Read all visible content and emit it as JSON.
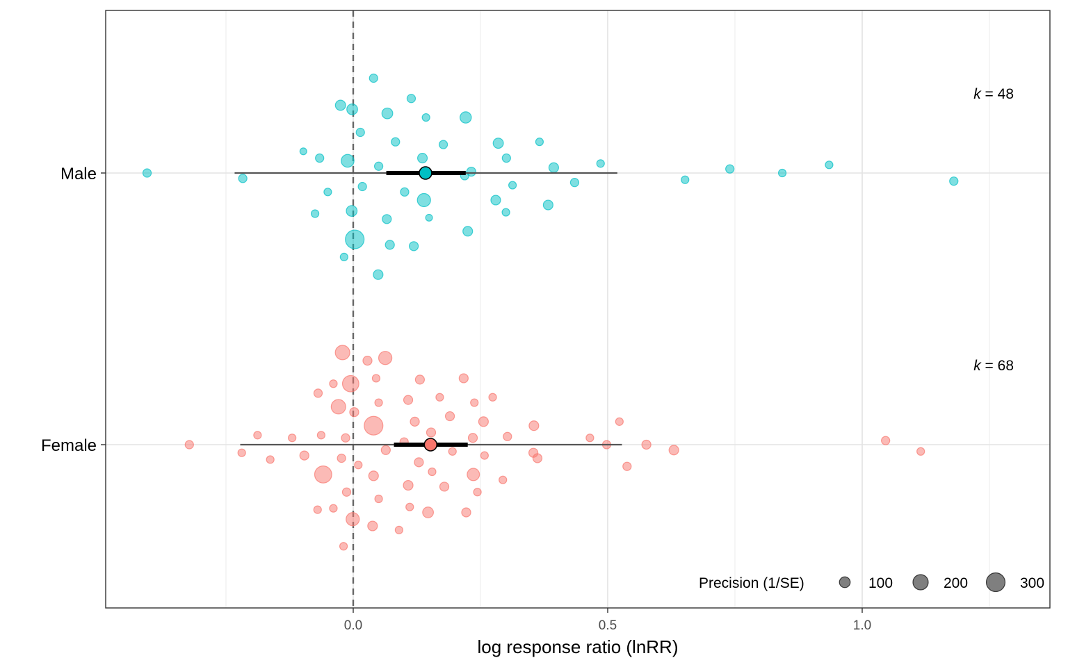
{
  "chart_data": {
    "type": "scatter",
    "subtype": "orchard plot",
    "xlabel": "log response ratio (lnRR)",
    "ylabel": "",
    "xlim": [
      -0.49,
      1.36
    ],
    "x_ticks": [
      "0.0",
      "0.5",
      "1.0"
    ],
    "x_tick_values": [
      0,
      0.5,
      1.0
    ],
    "reference_line": 0,
    "grid": true,
    "groups": [
      {
        "name": "Male",
        "color": "#00BFC4",
        "k_label": "k",
        "k_value": "= 48",
        "estimate": 0.142,
        "ci": [
          0.065,
          0.221
        ],
        "pi": [
          -0.233,
          0.519
        ],
        "points": [
          {
            "x": -0.405,
            "jitter": 0.0,
            "precision": 60
          },
          {
            "x": -0.217,
            "jitter": -0.02,
            "precision": 60
          },
          {
            "x": -0.098,
            "jitter": 0.08,
            "precision": 40
          },
          {
            "x": -0.066,
            "jitter": 0.055,
            "precision": 60
          },
          {
            "x": -0.05,
            "jitter": -0.07,
            "precision": 50
          },
          {
            "x": -0.075,
            "jitter": -0.15,
            "precision": 50
          },
          {
            "x": -0.025,
            "jitter": 0.25,
            "precision": 90
          },
          {
            "x": -0.011,
            "jitter": 0.045,
            "precision": 140
          },
          {
            "x": -0.003,
            "jitter": -0.14,
            "precision": 100
          },
          {
            "x": -0.018,
            "jitter": -0.31,
            "precision": 50
          },
          {
            "x": -0.002,
            "jitter": 0.235,
            "precision": 100
          },
          {
            "x": 0.003,
            "jitter": -0.245,
            "precision": 300
          },
          {
            "x": 0.014,
            "jitter": 0.15,
            "precision": 60
          },
          {
            "x": 0.018,
            "jitter": -0.05,
            "precision": 60
          },
          {
            "x": 0.04,
            "jitter": 0.35,
            "precision": 60
          },
          {
            "x": 0.05,
            "jitter": 0.025,
            "precision": 60
          },
          {
            "x": 0.049,
            "jitter": -0.375,
            "precision": 80
          },
          {
            "x": 0.066,
            "jitter": -0.17,
            "precision": 70
          },
          {
            "x": 0.067,
            "jitter": 0.22,
            "precision": 100
          },
          {
            "x": 0.072,
            "jitter": -0.265,
            "precision": 70
          },
          {
            "x": 0.083,
            "jitter": 0.115,
            "precision": 60
          },
          {
            "x": 0.101,
            "jitter": -0.07,
            "precision": 60
          },
          {
            "x": 0.114,
            "jitter": 0.275,
            "precision": 60
          },
          {
            "x": 0.119,
            "jitter": -0.27,
            "precision": 70
          },
          {
            "x": 0.136,
            "jitter": 0.055,
            "precision": 80
          },
          {
            "x": 0.139,
            "jitter": -0.1,
            "precision": 150
          },
          {
            "x": 0.143,
            "jitter": 0.205,
            "precision": 50
          },
          {
            "x": 0.149,
            "jitter": -0.165,
            "precision": 40
          },
          {
            "x": 0.177,
            "jitter": 0.105,
            "precision": 60
          },
          {
            "x": 0.219,
            "jitter": -0.01,
            "precision": 60
          },
          {
            "x": 0.221,
            "jitter": 0.205,
            "precision": 110
          },
          {
            "x": 0.225,
            "jitter": -0.215,
            "precision": 80
          },
          {
            "x": 0.232,
            "jitter": 0.005,
            "precision": 70
          },
          {
            "x": 0.28,
            "jitter": -0.1,
            "precision": 80
          },
          {
            "x": 0.285,
            "jitter": 0.11,
            "precision": 90
          },
          {
            "x": 0.301,
            "jitter": 0.055,
            "precision": 60
          },
          {
            "x": 0.3,
            "jitter": -0.145,
            "precision": 50
          },
          {
            "x": 0.313,
            "jitter": -0.045,
            "precision": 50
          },
          {
            "x": 0.366,
            "jitter": 0.115,
            "precision": 50
          },
          {
            "x": 0.383,
            "jitter": -0.118,
            "precision": 80
          },
          {
            "x": 0.394,
            "jitter": 0.02,
            "precision": 80
          },
          {
            "x": 0.435,
            "jitter": -0.035,
            "precision": 60
          },
          {
            "x": 0.486,
            "jitter": 0.035,
            "precision": 50
          },
          {
            "x": 0.652,
            "jitter": -0.025,
            "precision": 50
          },
          {
            "x": 0.74,
            "jitter": 0.015,
            "precision": 60
          },
          {
            "x": 0.843,
            "jitter": 0.0,
            "precision": 50
          },
          {
            "x": 0.935,
            "jitter": 0.03,
            "precision": 50
          },
          {
            "x": 1.18,
            "jitter": -0.03,
            "precision": 60
          }
        ]
      },
      {
        "name": "Female",
        "color": "#F8766D",
        "k_label": "k",
        "k_value": "= 68",
        "estimate": 0.152,
        "ci": [
          0.08,
          0.225
        ],
        "pi": [
          -0.222,
          0.528
        ],
        "points": [
          {
            "x": -0.322,
            "jitter": 0.0,
            "precision": 60
          },
          {
            "x": -0.219,
            "jitter": -0.03,
            "precision": 50
          },
          {
            "x": -0.188,
            "jitter": 0.035,
            "precision": 50
          },
          {
            "x": -0.163,
            "jitter": -0.055,
            "precision": 50
          },
          {
            "x": -0.12,
            "jitter": 0.025,
            "precision": 50
          },
          {
            "x": -0.096,
            "jitter": -0.04,
            "precision": 70
          },
          {
            "x": -0.07,
            "jitter": -0.24,
            "precision": 50
          },
          {
            "x": -0.069,
            "jitter": 0.19,
            "precision": 60
          },
          {
            "x": -0.063,
            "jitter": 0.035,
            "precision": 50
          },
          {
            "x": -0.059,
            "jitter": -0.11,
            "precision": 250
          },
          {
            "x": -0.039,
            "jitter": 0.225,
            "precision": 50
          },
          {
            "x": -0.039,
            "jitter": -0.235,
            "precision": 50
          },
          {
            "x": -0.029,
            "jitter": 0.14,
            "precision": 180
          },
          {
            "x": -0.021,
            "jitter": 0.34,
            "precision": 180
          },
          {
            "x": -0.023,
            "jitter": -0.05,
            "precision": 60
          },
          {
            "x": -0.019,
            "jitter": -0.375,
            "precision": 50
          },
          {
            "x": -0.015,
            "jitter": 0.025,
            "precision": 60
          },
          {
            "x": -0.013,
            "jitter": -0.175,
            "precision": 60
          },
          {
            "x": -0.005,
            "jitter": 0.225,
            "precision": 230
          },
          {
            "x": -0.001,
            "jitter": -0.275,
            "precision": 150
          },
          {
            "x": 0.002,
            "jitter": 0.12,
            "precision": 70
          },
          {
            "x": 0.01,
            "jitter": -0.075,
            "precision": 50
          },
          {
            "x": 0.028,
            "jitter": 0.31,
            "precision": 70
          },
          {
            "x": 0.04,
            "jitter": 0.07,
            "precision": 300
          },
          {
            "x": 0.038,
            "jitter": -0.3,
            "precision": 80
          },
          {
            "x": 0.045,
            "jitter": 0.245,
            "precision": 50
          },
          {
            "x": 0.04,
            "jitter": -0.115,
            "precision": 80
          },
          {
            "x": 0.05,
            "jitter": 0.155,
            "precision": 50
          },
          {
            "x": 0.05,
            "jitter": -0.2,
            "precision": 50
          },
          {
            "x": 0.063,
            "jitter": 0.32,
            "precision": 150
          },
          {
            "x": 0.064,
            "jitter": -0.02,
            "precision": 70
          },
          {
            "x": 0.09,
            "jitter": -0.315,
            "precision": 50
          },
          {
            "x": 0.1,
            "jitter": 0.01,
            "precision": 60
          },
          {
            "x": 0.108,
            "jitter": -0.15,
            "precision": 80
          },
          {
            "x": 0.108,
            "jitter": 0.165,
            "precision": 70
          },
          {
            "x": 0.111,
            "jitter": -0.23,
            "precision": 50
          },
          {
            "x": 0.121,
            "jitter": 0.085,
            "precision": 70
          },
          {
            "x": 0.131,
            "jitter": 0.24,
            "precision": 70
          },
          {
            "x": 0.129,
            "jitter": -0.065,
            "precision": 70
          },
          {
            "x": 0.147,
            "jitter": -0.25,
            "precision": 100
          },
          {
            "x": 0.153,
            "jitter": 0.045,
            "precision": 70
          },
          {
            "x": 0.155,
            "jitter": -0.1,
            "precision": 50
          },
          {
            "x": 0.17,
            "jitter": 0.175,
            "precision": 50
          },
          {
            "x": 0.179,
            "jitter": -0.155,
            "precision": 70
          },
          {
            "x": 0.19,
            "jitter": 0.105,
            "precision": 70
          },
          {
            "x": 0.195,
            "jitter": -0.025,
            "precision": 50
          },
          {
            "x": 0.217,
            "jitter": 0.245,
            "precision": 70
          },
          {
            "x": 0.222,
            "jitter": -0.25,
            "precision": 70
          },
          {
            "x": 0.238,
            "jitter": 0.155,
            "precision": 50
          },
          {
            "x": 0.235,
            "jitter": 0.025,
            "precision": 70
          },
          {
            "x": 0.236,
            "jitter": -0.11,
            "precision": 130
          },
          {
            "x": 0.244,
            "jitter": -0.175,
            "precision": 50
          },
          {
            "x": 0.256,
            "jitter": 0.085,
            "precision": 80
          },
          {
            "x": 0.258,
            "jitter": -0.04,
            "precision": 50
          },
          {
            "x": 0.274,
            "jitter": 0.175,
            "precision": 50
          },
          {
            "x": 0.294,
            "jitter": -0.13,
            "precision": 50
          },
          {
            "x": 0.303,
            "jitter": 0.03,
            "precision": 60
          },
          {
            "x": 0.354,
            "jitter": -0.03,
            "precision": 70
          },
          {
            "x": 0.355,
            "jitter": 0.07,
            "precision": 80
          },
          {
            "x": 0.362,
            "jitter": -0.05,
            "precision": 70
          },
          {
            "x": 0.465,
            "jitter": 0.025,
            "precision": 50
          },
          {
            "x": 0.498,
            "jitter": 0.0,
            "precision": 60
          },
          {
            "x": 0.523,
            "jitter": 0.085,
            "precision": 50
          },
          {
            "x": 0.538,
            "jitter": -0.08,
            "precision": 60
          },
          {
            "x": 0.576,
            "jitter": 0.0,
            "precision": 70
          },
          {
            "x": 0.63,
            "jitter": -0.02,
            "precision": 80
          },
          {
            "x": 1.046,
            "jitter": 0.015,
            "precision": 60
          },
          {
            "x": 1.115,
            "jitter": -0.025,
            "precision": 50
          }
        ]
      }
    ],
    "legend": {
      "title": "Precision (1/SE)",
      "position": "bottom-right",
      "entries": [
        {
          "label": "100",
          "value": 100
        },
        {
          "label": "200",
          "value": 200
        },
        {
          "label": "300",
          "value": 300
        }
      ]
    }
  }
}
